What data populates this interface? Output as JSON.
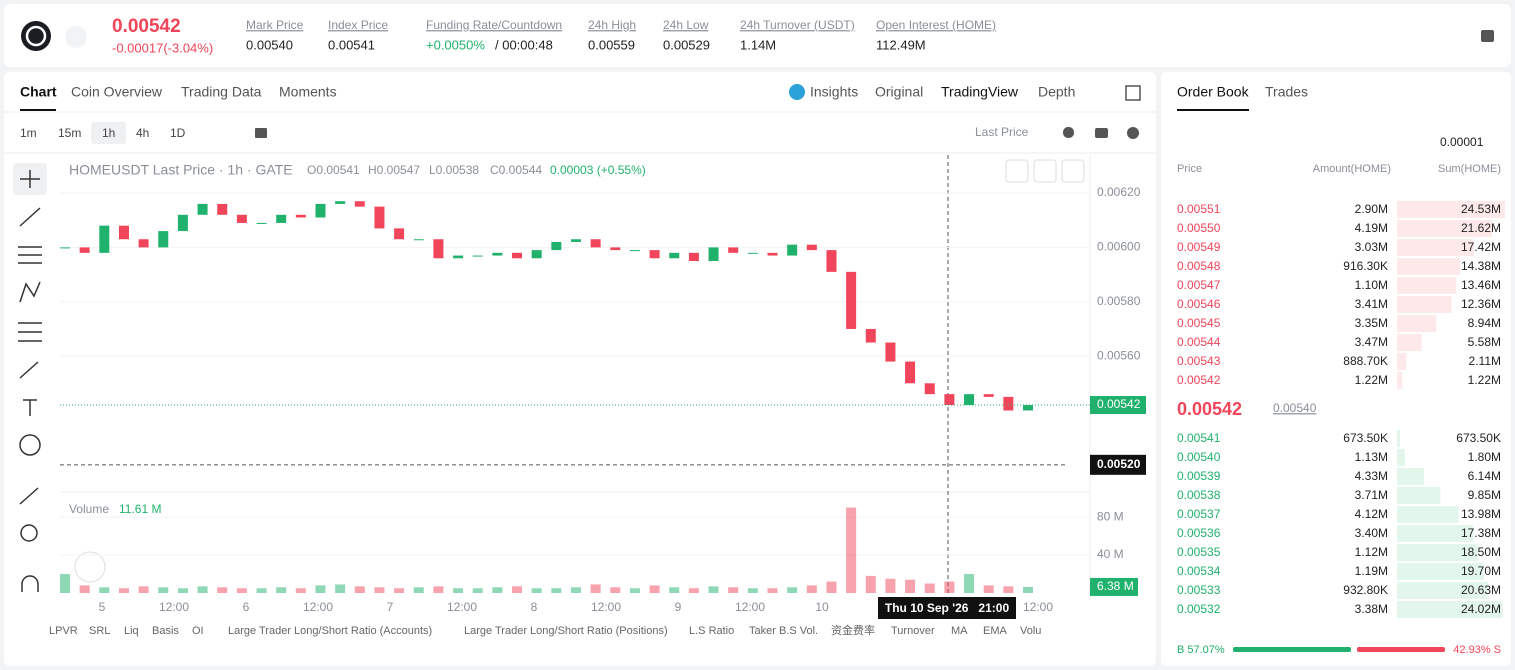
{
  "header": {
    "price": "0.00542",
    "change": "-0.00017(-3.04%)",
    "stats": [
      {
        "label": "Mark Price",
        "value": "0.00540"
      },
      {
        "label": "Index Price",
        "value": "0.00541"
      },
      {
        "label": "Funding Rate/Countdown",
        "value": "+0.0050%",
        "extra": "/ 00:00:48"
      },
      {
        "label": "24h High",
        "value": "0.00559"
      },
      {
        "label": "24h Low",
        "value": "0.00529"
      },
      {
        "label": "24h Turnover (USDT)",
        "value": "1.14M"
      },
      {
        "label": "Open Interest (HOME)",
        "value": "112.49M"
      }
    ]
  },
  "chart_tabs": [
    "Chart",
    "Coin Overview",
    "Trading Data",
    "Moments"
  ],
  "view_tabs": [
    "Insights",
    "Original",
    "TradingView",
    "Depth"
  ],
  "intervals": [
    "1m",
    "15m",
    "1h",
    "4h",
    "1D"
  ],
  "price_type": "Last Price",
  "legend": {
    "symbol": "HOMEUSDT Last Price · 1h · GATE",
    "o": "O0.00541",
    "h": "H0.00547",
    "l": "L0.00538",
    "c": "C0.00544",
    "chg": "0.00003 (+0.55%)"
  },
  "volume_title": "Volume",
  "volume_value": "11.61 M",
  "indicators": [
    "LPVR",
    "SRL",
    "Liq",
    "Basis",
    "OI",
    "Large Trader Long/Short Ratio (Accounts)",
    "Large Trader Long/Short Ratio (Positions)",
    "L.S Ratio",
    "Taker B.S Vol.",
    "资金费率",
    "Turnover",
    "MA",
    "EMA",
    "Volu"
  ],
  "chart_data": {
    "type": "candlestick",
    "closes": [
      0.006,
      0.00598,
      0.00608,
      0.00603,
      0.006,
      0.00606,
      0.00612,
      0.00616,
      0.00612,
      0.00609,
      0.00609,
      0.00612,
      0.00611,
      0.00616,
      0.00617,
      0.00615,
      0.00607,
      0.00603,
      0.00603,
      0.00596,
      0.00597,
      0.00597,
      0.00598,
      0.00596,
      0.00599,
      0.00602,
      0.00603,
      0.006,
      0.00599,
      0.00599,
      0.00596,
      0.00598,
      0.00595,
      0.006,
      0.00598,
      0.00598,
      0.00597,
      0.00601,
      0.00599,
      0.00591,
      0.0057,
      0.00565,
      0.00558,
      0.0055,
      0.00546,
      0.00542,
      0.00546,
      0.00545,
      0.0054,
      0.00542
    ],
    "volumes": [
      20000000,
      8000000,
      6000000,
      5000000,
      7000000,
      6000000,
      5000000,
      7000000,
      6000000,
      5000000,
      5000000,
      6000000,
      5000000,
      8000000,
      9000000,
      7000000,
      6000000,
      5000000,
      6000000,
      7000000,
      5000000,
      5000000,
      6000000,
      7000000,
      5000000,
      5000000,
      6000000,
      9000000,
      6000000,
      5000000,
      8000000,
      6000000,
      5000000,
      7000000,
      6000000,
      5000000,
      5000000,
      6000000,
      8000000,
      12000000,
      90000000,
      18000000,
      15000000,
      14000000,
      10000000,
      12000000,
      20000000,
      8000000,
      7000000,
      6380000
    ],
    "colors": {
      "up": "#20b26c",
      "down": "#f0455a"
    },
    "ylim": [
      0.0051,
      0.00634
    ],
    "yticks": [
      {
        "value": 0.0056,
        "label": "0.00560"
      },
      {
        "value": 0.0058,
        "label": "0.00580"
      },
      {
        "value": 0.006,
        "label": "0.00600"
      },
      {
        "value": 0.0062,
        "label": "0.00620"
      }
    ],
    "y2lim": [
      0,
      98000000
    ],
    "y2ticks": [
      {
        "value": 40000000,
        "label": "40 M"
      },
      {
        "value": 80000000,
        "label": "80 M"
      }
    ],
    "last_price": {
      "value": 0.00542,
      "label": "0.00542"
    },
    "crosshair_price": {
      "value": 0.0052,
      "label": "0.00520"
    },
    "volume_badge": {
      "value": 6380000,
      "label": "6.38 M"
    },
    "x_labels": [
      "5",
      "12:00",
      "6",
      "12:00",
      "7",
      "12:00",
      "8",
      "12:00",
      "9",
      "12:00",
      "10"
    ],
    "crosshair_time": "Thu 10 Sep '26   21:00",
    "x_label_end": "12:00"
  },
  "order_book": {
    "tabs": [
      "Order Book",
      "Trades"
    ],
    "precision": "0.00001",
    "columns": [
      "Price",
      "Amount(HOME)",
      "Sum(HOME)"
    ],
    "asks": [
      {
        "price": "0.00551",
        "amount": "2.90M",
        "sum": {
          "value": 24530000,
          "label": "24.53M"
        }
      },
      {
        "price": "0.00550",
        "amount": "4.19M",
        "sum": {
          "value": 21620000,
          "label": "21.62M"
        }
      },
      {
        "price": "0.00549",
        "amount": "3.03M",
        "sum": {
          "value": 17420000,
          "label": "17.42M"
        }
      },
      {
        "price": "0.00548",
        "amount": "916.30K",
        "sum": {
          "value": 14380000,
          "label": "14.38M"
        }
      },
      {
        "price": "0.00547",
        "amount": "1.10M",
        "sum": {
          "value": 13460000,
          "label": "13.46M"
        }
      },
      {
        "price": "0.00546",
        "amount": "3.41M",
        "sum": {
          "value": 12360000,
          "label": "12.36M"
        }
      },
      {
        "price": "0.00545",
        "amount": "3.35M",
        "sum": {
          "value": 8940000,
          "label": "8.94M"
        }
      },
      {
        "price": "0.00544",
        "amount": "3.47M",
        "sum": {
          "value": 5580000,
          "label": "5.58M"
        }
      },
      {
        "price": "0.00543",
        "amount": "888.70K",
        "sum": {
          "value": 2110000,
          "label": "2.11M"
        }
      },
      {
        "price": "0.00542",
        "amount": "1.22M",
        "sum": {
          "value": 1220000,
          "label": "1.22M"
        }
      }
    ],
    "mid_price": "0.00542",
    "mark_price": "0.00540",
    "bids": [
      {
        "price": "0.00541",
        "amount": "673.50K",
        "sum": {
          "value": 673500,
          "label": "673.50K"
        }
      },
      {
        "price": "0.00540",
        "amount": "1.13M",
        "sum": {
          "value": 1800000,
          "label": "1.80M"
        }
      },
      {
        "price": "0.00539",
        "amount": "4.33M",
        "sum": {
          "value": 6140000,
          "label": "6.14M"
        }
      },
      {
        "price": "0.00538",
        "amount": "3.71M",
        "sum": {
          "value": 9850000,
          "label": "9.85M"
        }
      },
      {
        "price": "0.00537",
        "amount": "4.12M",
        "sum": {
          "value": 13980000,
          "label": "13.98M"
        }
      },
      {
        "price": "0.00536",
        "amount": "3.40M",
        "sum": {
          "value": 17380000,
          "label": "17.38M"
        }
      },
      {
        "price": "0.00535",
        "amount": "1.12M",
        "sum": {
          "value": 18500000,
          "label": "18.50M"
        }
      },
      {
        "price": "0.00534",
        "amount": "1.19M",
        "sum": {
          "value": 19700000,
          "label": "19.70M"
        }
      },
      {
        "price": "0.00533",
        "amount": "932.80K",
        "sum": {
          "value": 20630000,
          "label": "20.63M"
        }
      },
      {
        "price": "0.00532",
        "amount": "3.38M",
        "sum": {
          "value": 24020000,
          "label": "24.02M"
        }
      }
    ],
    "buy_ratio": {
      "value": 57.07,
      "label": "B 57.07%"
    },
    "sell_ratio": {
      "value": 42.93,
      "label": "42.93% S"
    }
  }
}
